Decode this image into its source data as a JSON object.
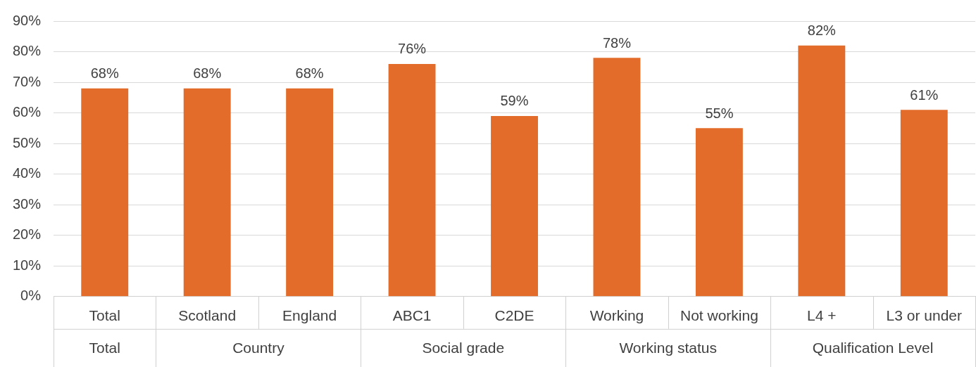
{
  "chart_data": {
    "type": "bar",
    "categories": [
      "Total",
      "Scotland",
      "England",
      "ABC1",
      "C2DE",
      "Working",
      "Not working",
      "L4 +",
      "L3 or under"
    ],
    "values": [
      68,
      68,
      68,
      76,
      59,
      78,
      55,
      82,
      61
    ],
    "color": "#e36c2a",
    "value_labels": [
      "68%",
      "68%",
      "68%",
      "76%",
      "59%",
      "78%",
      "55%",
      "82%",
      "61%"
    ],
    "ylim": [
      0,
      90
    ],
    "yticks": [
      {
        "value": 0,
        "label": "0%"
      },
      {
        "value": 10,
        "label": "10%"
      },
      {
        "value": 20,
        "label": "20%"
      },
      {
        "value": 30,
        "label": "30%"
      },
      {
        "value": 40,
        "label": "40%"
      },
      {
        "value": 50,
        "label": "50%"
      },
      {
        "value": 60,
        "label": "60%"
      },
      {
        "value": 70,
        "label": "70%"
      },
      {
        "value": 80,
        "label": "80%"
      },
      {
        "value": 90,
        "label": "90%"
      }
    ],
    "grid": "y",
    "legend": false,
    "annotations": [
      "Total",
      "Country",
      "Social grade",
      "Working status",
      "Qualification Level"
    ]
  }
}
